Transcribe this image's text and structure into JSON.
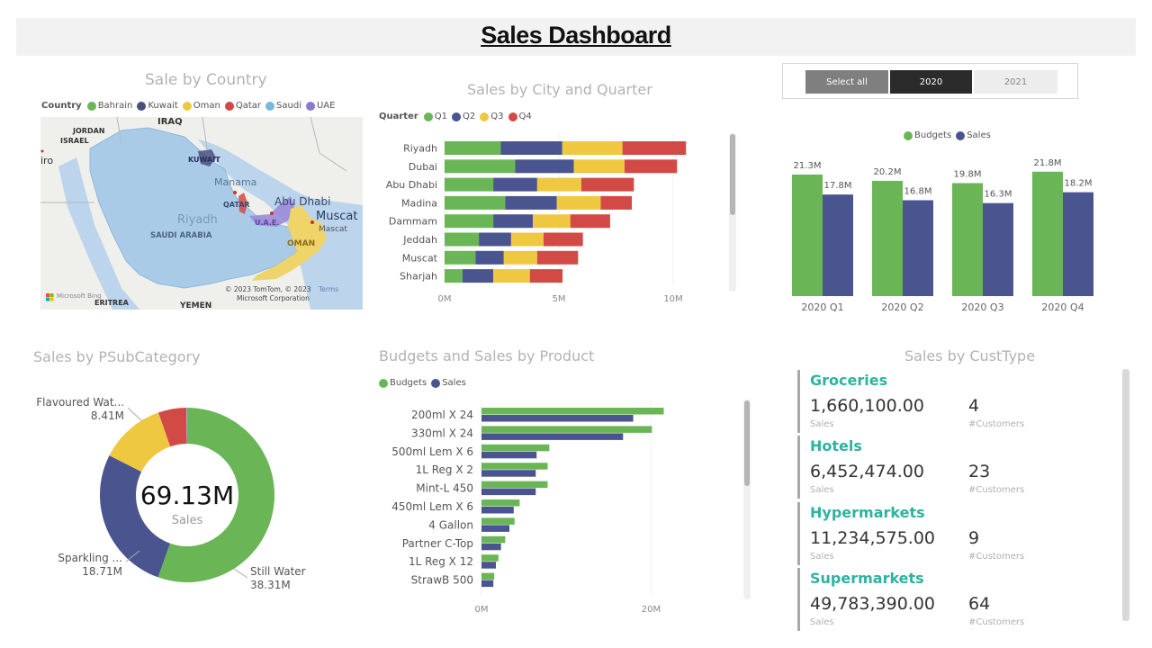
{
  "header": {
    "title": "Sales Dashboard"
  },
  "colors": {
    "green": "#6ab657",
    "navy": "#4a5590",
    "yellow": "#efc842",
    "red": "#d24a45",
    "light_blue": "#9ec9e8",
    "purple": "#8b79d0",
    "teal": "#2db3a0",
    "slicer_selected": "#2b2b2b",
    "slicer_selectall": "#7f7f7f",
    "slicer_unselected": "#ededed"
  },
  "map": {
    "title": "Sale by Country",
    "legend_title": "Country",
    "legend": [
      {
        "label": "Bahrain",
        "color": "#6ab657"
      },
      {
        "label": "Kuwait",
        "color": "#4a4f80"
      },
      {
        "label": "Oman",
        "color": "#efc842"
      },
      {
        "label": "Qatar",
        "color": "#d24a45"
      },
      {
        "label": "Saudi",
        "color": "#79b7e2"
      },
      {
        "label": "UAE",
        "color": "#8b79d0"
      }
    ],
    "labels": {
      "iraq": "IRAQ",
      "jordan": "JORDAN",
      "israel": "ISRAEL",
      "cairo": "iro",
      "kuwait": "KUWAIT",
      "manama": "Manama",
      "qatar": "QATAR",
      "abu_dhabi": "Abu Dhabi",
      "uae": "U.A.E.",
      "muscat": "Muscat",
      "mascat": "Mascat",
      "riyadh": "Riyadh",
      "saudi_arabia": "SAUDI ARABIA",
      "oman": "OMAN",
      "eritrea": "ERITREA",
      "yemen": "YEMEN",
      "copyright_1": "© 2023 TomTom, © 2023",
      "copyright_2": "Microsoft Corporation",
      "terms": "Terms",
      "bing": "Microsoft Bing"
    }
  },
  "slicer": {
    "options": [
      {
        "label": "Select all",
        "state": "partial"
      },
      {
        "label": "2020",
        "state": "selected"
      },
      {
        "label": "2021",
        "state": "unselected"
      }
    ]
  },
  "chart_data": [
    {
      "id": "city_quarter",
      "type": "bar",
      "orientation": "horizontal",
      "stacked": true,
      "title": "Sales by City and Quarter",
      "legend_title": "Quarter",
      "legend_position": "top-left",
      "categories": [
        "Riyadh",
        "Dubai",
        "Abu Dhabi",
        "Madina",
        "Dammam",
        "Jeddah",
        "Muscat",
        "Sharjah"
      ],
      "series": [
        {
          "name": "Q1",
          "color": "#6ab657",
          "values": [
            2.46,
            3.09,
            2.13,
            2.65,
            2.13,
            1.5,
            1.35,
            0.78
          ]
        },
        {
          "name": "Q2",
          "color": "#4a5590",
          "values": [
            2.69,
            2.56,
            1.92,
            2.26,
            1.73,
            1.41,
            1.24,
            1.35
          ]
        },
        {
          "name": "Q3",
          "color": "#efc842",
          "values": [
            2.63,
            2.22,
            1.93,
            1.92,
            1.64,
            1.42,
            1.46,
            1.6
          ]
        },
        {
          "name": "Q4",
          "color": "#d24a45",
          "values": [
            2.78,
            2.3,
            2.3,
            1.36,
            1.74,
            1.72,
            1.79,
            1.43
          ]
        }
      ],
      "xticks": [
        "0M",
        "5M",
        "10M"
      ],
      "xtick_values": [
        0,
        5,
        10
      ],
      "xlim": [
        0,
        11.5
      ],
      "unit": "M",
      "grid": true
    },
    {
      "id": "budget_sales_quarter",
      "type": "bar",
      "orientation": "vertical",
      "title": "",
      "legend_position": "top-center",
      "categories": [
        "2020 Q1",
        "2020 Q2",
        "2020 Q3",
        "2020 Q4"
      ],
      "series": [
        {
          "name": "Budgets",
          "color": "#6ab657",
          "values": [
            21.3,
            20.2,
            19.8,
            21.8
          ],
          "labels": [
            "21.3M",
            "20.2M",
            "19.8M",
            "21.8M"
          ]
        },
        {
          "name": "Sales",
          "color": "#4a5590",
          "values": [
            17.8,
            16.8,
            16.3,
            18.2
          ],
          "labels": [
            "17.8M",
            "16.8M",
            "16.3M",
            "18.2M"
          ]
        }
      ],
      "ylim": [
        0,
        24
      ],
      "unit": "M",
      "grid": false
    },
    {
      "id": "psubcategory",
      "type": "pie",
      "donut": true,
      "title": "Sales by PSubCategory",
      "center_value": "69.13M",
      "center_label": "Sales",
      "slices": [
        {
          "name": "Still Water",
          "value": 38.31,
          "label": "38.31M",
          "color": "#6ab657",
          "show_label": true
        },
        {
          "name": "Sparkling ...",
          "value": 18.71,
          "label": "18.71M",
          "color": "#4a5590",
          "show_label": true
        },
        {
          "name": "Flavoured Wat...",
          "value": 8.41,
          "label": "8.41M",
          "color": "#efc842",
          "show_label": true
        },
        {
          "name": "",
          "value": 3.6,
          "label": "",
          "color": "#d24a45",
          "show_label": false
        },
        {
          "name": "",
          "value": 0.1,
          "label": "",
          "color": "#9fb3c8",
          "show_label": false
        }
      ]
    },
    {
      "id": "budget_sales_product",
      "type": "bar",
      "orientation": "horizontal",
      "title": "Budgets and Sales by Product",
      "legend_position": "top-left",
      "categories": [
        "200ml X 24",
        "330ml X 24",
        "500ml Lem X 6",
        "1L Reg X 2",
        "Mint-L 450",
        "450ml Lem X 6",
        "4 Gallon",
        "Partner C-Top",
        "1L Reg X 12",
        "StrawB 500"
      ],
      "series": [
        {
          "name": "Budgets",
          "color": "#6ab657",
          "values": [
            21.5,
            20.1,
            8.0,
            7.8,
            7.8,
            4.5,
            3.9,
            2.8,
            2.0,
            1.5
          ]
        },
        {
          "name": "Sales",
          "color": "#4a5590",
          "values": [
            17.9,
            16.7,
            6.5,
            6.4,
            6.4,
            3.8,
            3.3,
            2.3,
            1.7,
            1.4
          ]
        }
      ],
      "xticks": [
        "0M",
        "20M"
      ],
      "xtick_values": [
        0,
        20
      ],
      "xlim": [
        0,
        30
      ],
      "unit": "M",
      "grid": true
    }
  ],
  "custtype": {
    "title": "Sales by CustType",
    "cards": [
      {
        "name": "Groceries",
        "sales": "1,660,100.00",
        "sales_label": "Sales",
        "customers": "4",
        "customers_label": "#Customers"
      },
      {
        "name": "Hotels",
        "sales": "6,452,474.00",
        "sales_label": "Sales",
        "customers": "23",
        "customers_label": "#Customers"
      },
      {
        "name": "Hypermarkets",
        "sales": "11,234,575.00",
        "sales_label": "Sales",
        "customers": "9",
        "customers_label": "#Customers"
      },
      {
        "name": "Supermarkets",
        "sales": "49,783,390.00",
        "sales_label": "Sales",
        "customers": "64",
        "customers_label": "#Customers"
      }
    ]
  }
}
